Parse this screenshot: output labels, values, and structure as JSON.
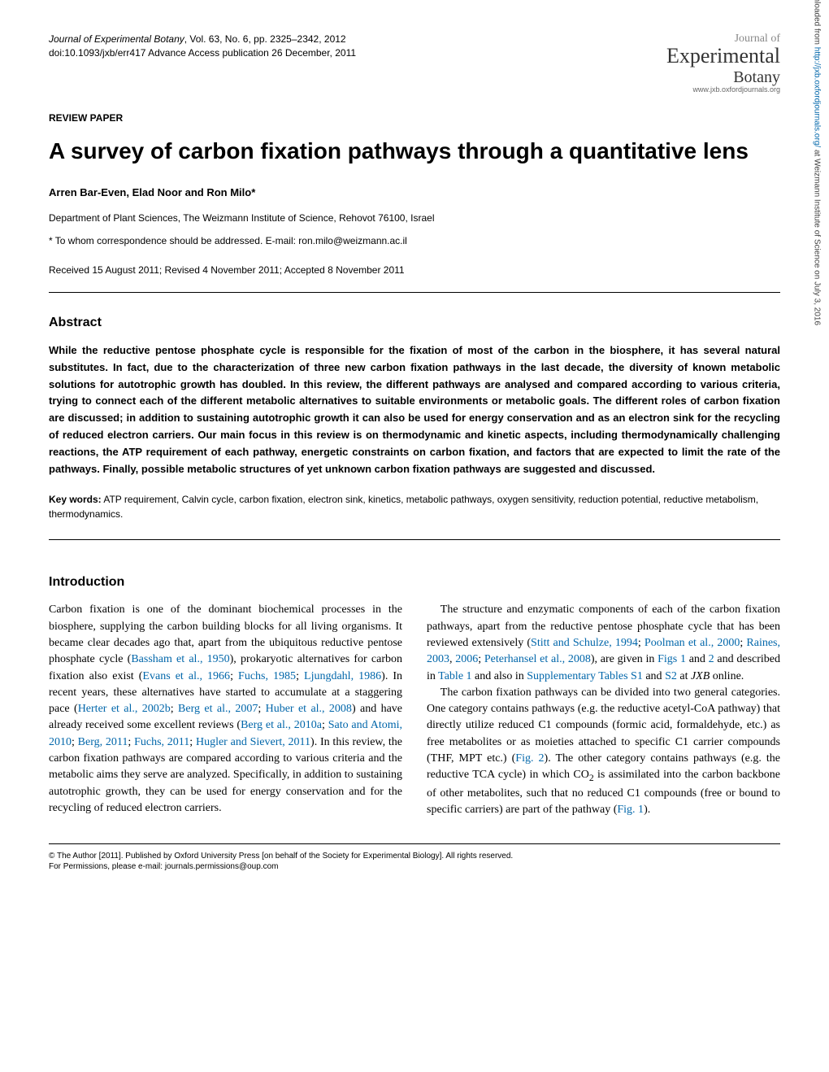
{
  "header": {
    "journal_line1": "Journal of Experimental Botany",
    "journal_line2": ", Vol. 63, No. 6, pp. 2325–2342, 2012",
    "doi_line": "doi:10.1093/jxb/err417   Advance Access publication 26 December, 2011"
  },
  "logo": {
    "journal_of": "Journal of",
    "experimental": "Experimental",
    "botany": "Botany",
    "url": "www.jxb.oxfordjournals.org"
  },
  "article_type": "REVIEW PAPER",
  "title": "A survey of carbon fixation pathways through a quantitative lens",
  "authors": "Arren Bar-Even, Elad Noor and Ron Milo*",
  "affiliation": "Department of Plant Sciences, The Weizmann Institute of Science, Rehovot 76100, Israel",
  "correspondence": "* To whom correspondence should be addressed. E-mail: ron.milo@weizmann.ac.il",
  "dates": "Received 15 August 2011; Revised 4 November 2011; Accepted 8 November 2011",
  "abstract": {
    "heading": "Abstract",
    "body": "While the reductive pentose phosphate cycle is responsible for the fixation of most of the carbon in the biosphere, it has several natural substitutes. In fact, due to the characterization of three new carbon fixation pathways in the last decade, the diversity of known metabolic solutions for autotrophic growth has doubled. In this review, the different pathways are analysed and compared according to various criteria, trying to connect each of the different metabolic alternatives to suitable environments or metabolic goals. The different roles of carbon fixation are discussed; in addition to sustaining autotrophic growth it can also be used for energy conservation and as an electron sink for the recycling of reduced electron carriers. Our main focus in this review is on thermodynamic and kinetic aspects, including thermodynamically challenging reactions, the ATP requirement of each pathway, energetic constraints on carbon fixation, and factors that are expected to limit the rate of the pathways. Finally, possible metabolic structures of yet unknown carbon fixation pathways are suggested and discussed."
  },
  "keywords": {
    "label": "Key words:",
    "text": " ATP requirement, Calvin cycle, carbon fixation, electron sink, kinetics, metabolic pathways, oxygen sensitivity, reduction potential, reductive metabolism, thermodynamics."
  },
  "introduction": {
    "heading": "Introduction",
    "para1_a": "Carbon fixation is one of the dominant biochemical processes in the biosphere, supplying the carbon building blocks for all living organisms. It became clear decades ago that, apart from the ubiquitous reductive pentose phosphate cycle (",
    "cite1": "Bassham et al., 1950",
    "para1_b": "), prokaryotic alternatives for carbon fixation also exist (",
    "cite2": "Evans et al., 1966",
    "para1_c": "; ",
    "cite3": "Fuchs, 1985",
    "para1_d": "; ",
    "cite4": "Ljungdahl, 1986",
    "para1_e": "). In recent years, these alternatives have started to accumulate at a staggering pace (",
    "cite5": "Herter et al., 2002b",
    "para1_f": "; ",
    "cite6": "Berg et al., 2007",
    "para1_g": "; ",
    "cite7": "Huber et al., 2008",
    "para1_h": ") and have already received some excellent reviews (",
    "cite8": "Berg et al., 2010a",
    "para1_i": "; ",
    "cite9": "Sato and Atomi, 2010",
    "para1_j": "; ",
    "cite10": "Berg, 2011",
    "para1_k": "; ",
    "cite11": "Fuchs, 2011",
    "para1_l": "; ",
    "cite12": "Hugler and Sievert, 2011",
    "para1_m": "). In this review, the carbon fixation pathways are compared according to various criteria and the metabolic aims they serve are analyzed. Specifically, in addition to sustaining autotrophic growth, they can be used for energy conservation and for the recycling of reduced electron carriers.",
    "para2_a": "The structure and enzymatic components of each of the carbon fixation pathways, apart from the reductive pentose phosphate cycle that has been reviewed extensively (",
    "cite13": "Stitt and Schulze, 1994",
    "para2_b": "; ",
    "cite14": "Poolman et al., 2000",
    "para2_c": "; ",
    "cite15": "Raines, 2003",
    "para2_d": ", ",
    "cite16": "2006",
    "para2_e": "; ",
    "cite17": "Peterhansel et al., 2008",
    "para2_f": "), are given in ",
    "figref1": "Figs 1",
    "para2_g": " and ",
    "figref2": "2",
    "para2_h": " and described in ",
    "tableref1": "Table 1",
    "para2_i": " and also in ",
    "supref1": "Supplementary Tables S1",
    "para2_j": " and ",
    "supref2": "S2",
    "para2_k": " at ",
    "jxb": "JXB",
    "para2_l": " online.",
    "para3_a": "The carbon fixation pathways can be divided into two general categories. One category contains pathways (e.g. the reductive acetyl-CoA pathway) that directly utilize reduced C1 compounds (formic acid, formaldehyde, etc.) as free metabolites or as moieties attached to specific C1 carrier compounds (THF, MPT etc.) (",
    "figref3": "Fig. 2",
    "para3_b": "). The other category contains pathways (e.g. the reductive TCA cycle) in which CO",
    "sub2": "2",
    "para3_c": " is assimilated into the carbon backbone of other metabolites, such that no reduced C1 compounds (free or bound to specific carriers) are part of the pathway (",
    "figref4": "Fig. 1",
    "para3_d": ")."
  },
  "footer": {
    "line1": "© The Author [2011]. Published by Oxford University Press [on behalf of the Society for Experimental Biology]. All rights reserved.",
    "line2": "For Permissions, please e-mail: journals.permissions@oup.com"
  },
  "side": {
    "text_a": "Downloaded from ",
    "link": "http://jxb.oxfordjournals.org/",
    "text_b": " at Weizmann Institute of Science on July 3, 2016"
  }
}
